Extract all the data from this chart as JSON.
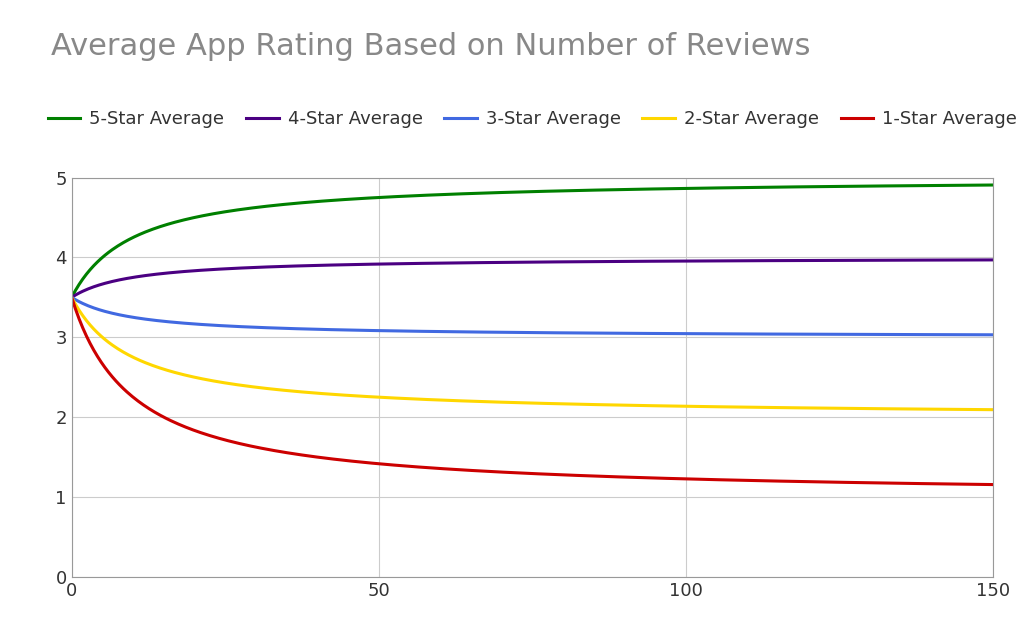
{
  "title": "Average App Rating Based on Number of Reviews",
  "prior_mean": 3.5,
  "prior_weight": 10,
  "star_ratings": [
    5,
    4,
    3,
    2,
    1
  ],
  "star_colors": [
    "#008000",
    "#4B0082",
    "#4169E1",
    "#FFD700",
    "#CC0000"
  ],
  "star_labels": [
    "5-Star Average",
    "4-Star Average",
    "3-Star Average",
    "2-Star Average",
    "1-Star Average"
  ],
  "x_max": 150,
  "x_ticks": [
    0,
    50,
    100,
    150
  ],
  "y_min": 0,
  "y_max": 5,
  "y_ticks": [
    0,
    1,
    2,
    3,
    4,
    5
  ],
  "title_fontsize": 22,
  "title_color": "#888888",
  "tick_fontsize": 13,
  "legend_fontsize": 13,
  "line_width": 2.2,
  "background_color": "#FFFFFF",
  "grid_color": "#CCCCCC",
  "n_points": 500
}
